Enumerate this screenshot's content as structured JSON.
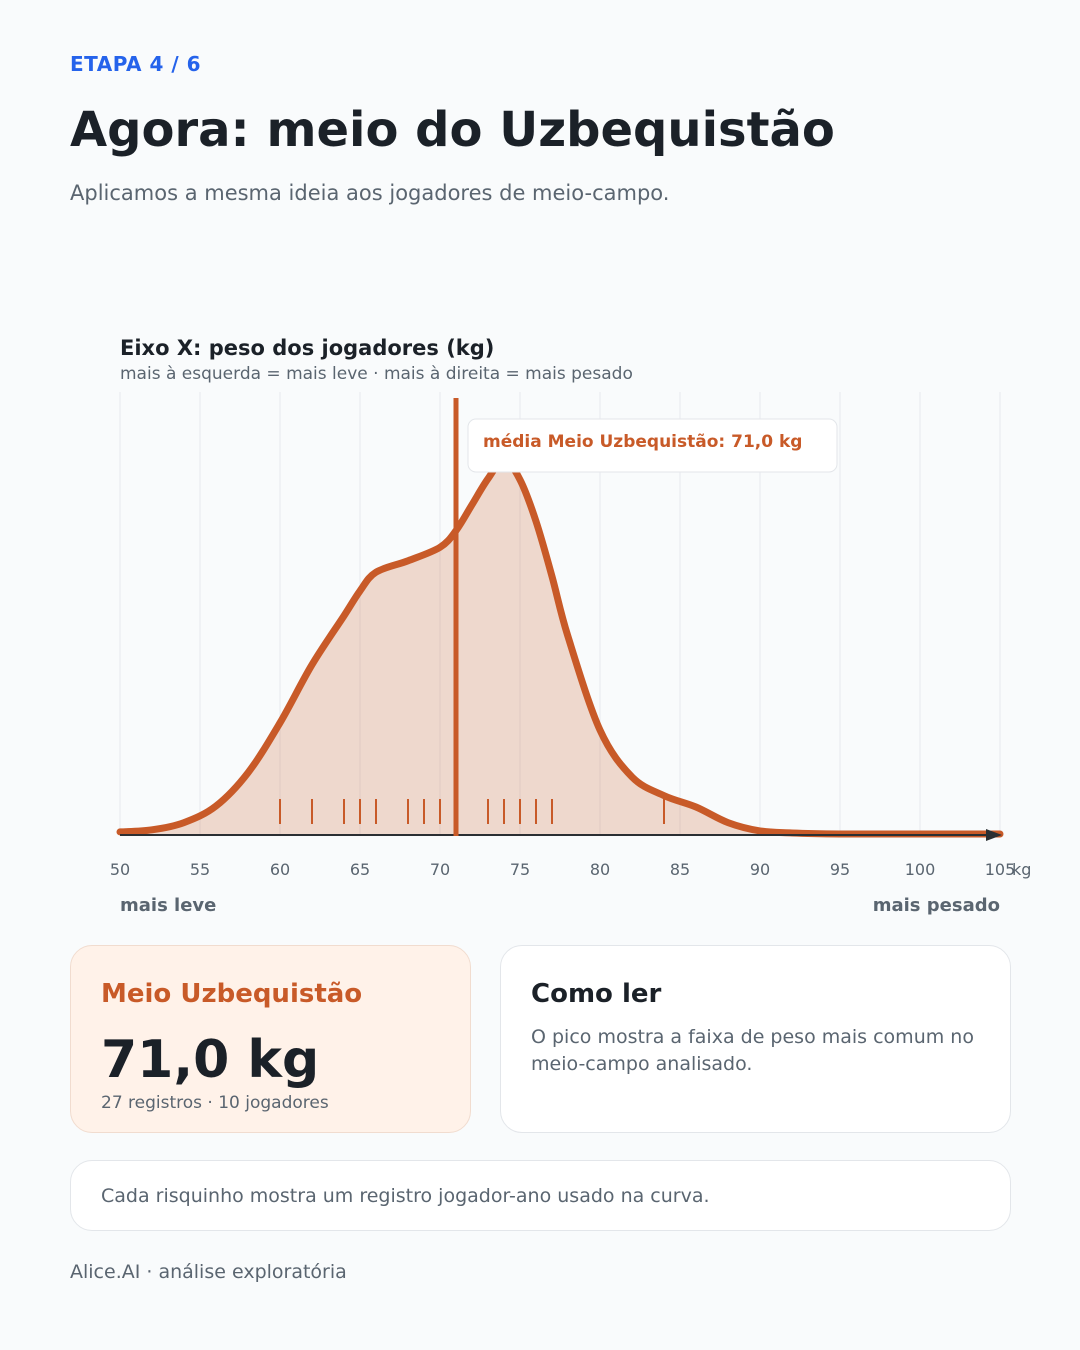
{
  "header": {
    "step": "ETAPA 4 / 6",
    "title": "Agora: meio do Uzbequistão",
    "subtitle": "Aplicamos a mesma ideia aos jogadores de meio-campo."
  },
  "chart_data": {
    "type": "area",
    "title": "Eixo X: peso dos jogadores (kg)",
    "subtitle": "mais à esquerda = mais leve · mais à direita = mais pesado",
    "xlabel": "",
    "x_unit": "kg",
    "xlim": [
      50,
      105
    ],
    "x_ticks": [
      50,
      55,
      60,
      65,
      70,
      75,
      80,
      85,
      90,
      95,
      100,
      105
    ],
    "axis_left_label": "mais leve",
    "axis_right_label": "mais pesado",
    "grid": true,
    "series": [
      {
        "name": "Meio Uzbequistão",
        "color": "#c85a28",
        "density_x": [
          50,
          52,
          54,
          56,
          58,
          60,
          62,
          64,
          65,
          66,
          68,
          70,
          71,
          72,
          73,
          74,
          75,
          76,
          77,
          78,
          80,
          82,
          84,
          86,
          88,
          90,
          92,
          95,
          100,
          105
        ],
        "density_y": [
          0.002,
          0.004,
          0.011,
          0.027,
          0.059,
          0.107,
          0.163,
          0.21,
          0.234,
          0.252,
          0.263,
          0.276,
          0.292,
          0.317,
          0.342,
          0.36,
          0.341,
          0.301,
          0.248,
          0.19,
          0.1,
          0.055,
          0.037,
          0.026,
          0.011,
          0.003,
          0.001,
          0,
          0,
          0
        ]
      }
    ],
    "rug": [
      60,
      62,
      64,
      65,
      66,
      68,
      69,
      70,
      73,
      74,
      75,
      76,
      77,
      84
    ],
    "mean": 71.0,
    "mean_label": "média Meio Uzbequistão: 71,0 kg"
  },
  "cards": {
    "group": {
      "name": "Meio Uzbequistão",
      "value": "71,0 kg",
      "meta": "27 registros · 10 jogadores"
    },
    "howto": {
      "title": "Como ler",
      "body": "O pico mostra a faixa de peso mais comum no meio-campo analisado."
    },
    "note": "Cada risquinho mostra um registro jogador-ano usado na curva."
  },
  "footer": "Alice.AI · análise exploratória"
}
